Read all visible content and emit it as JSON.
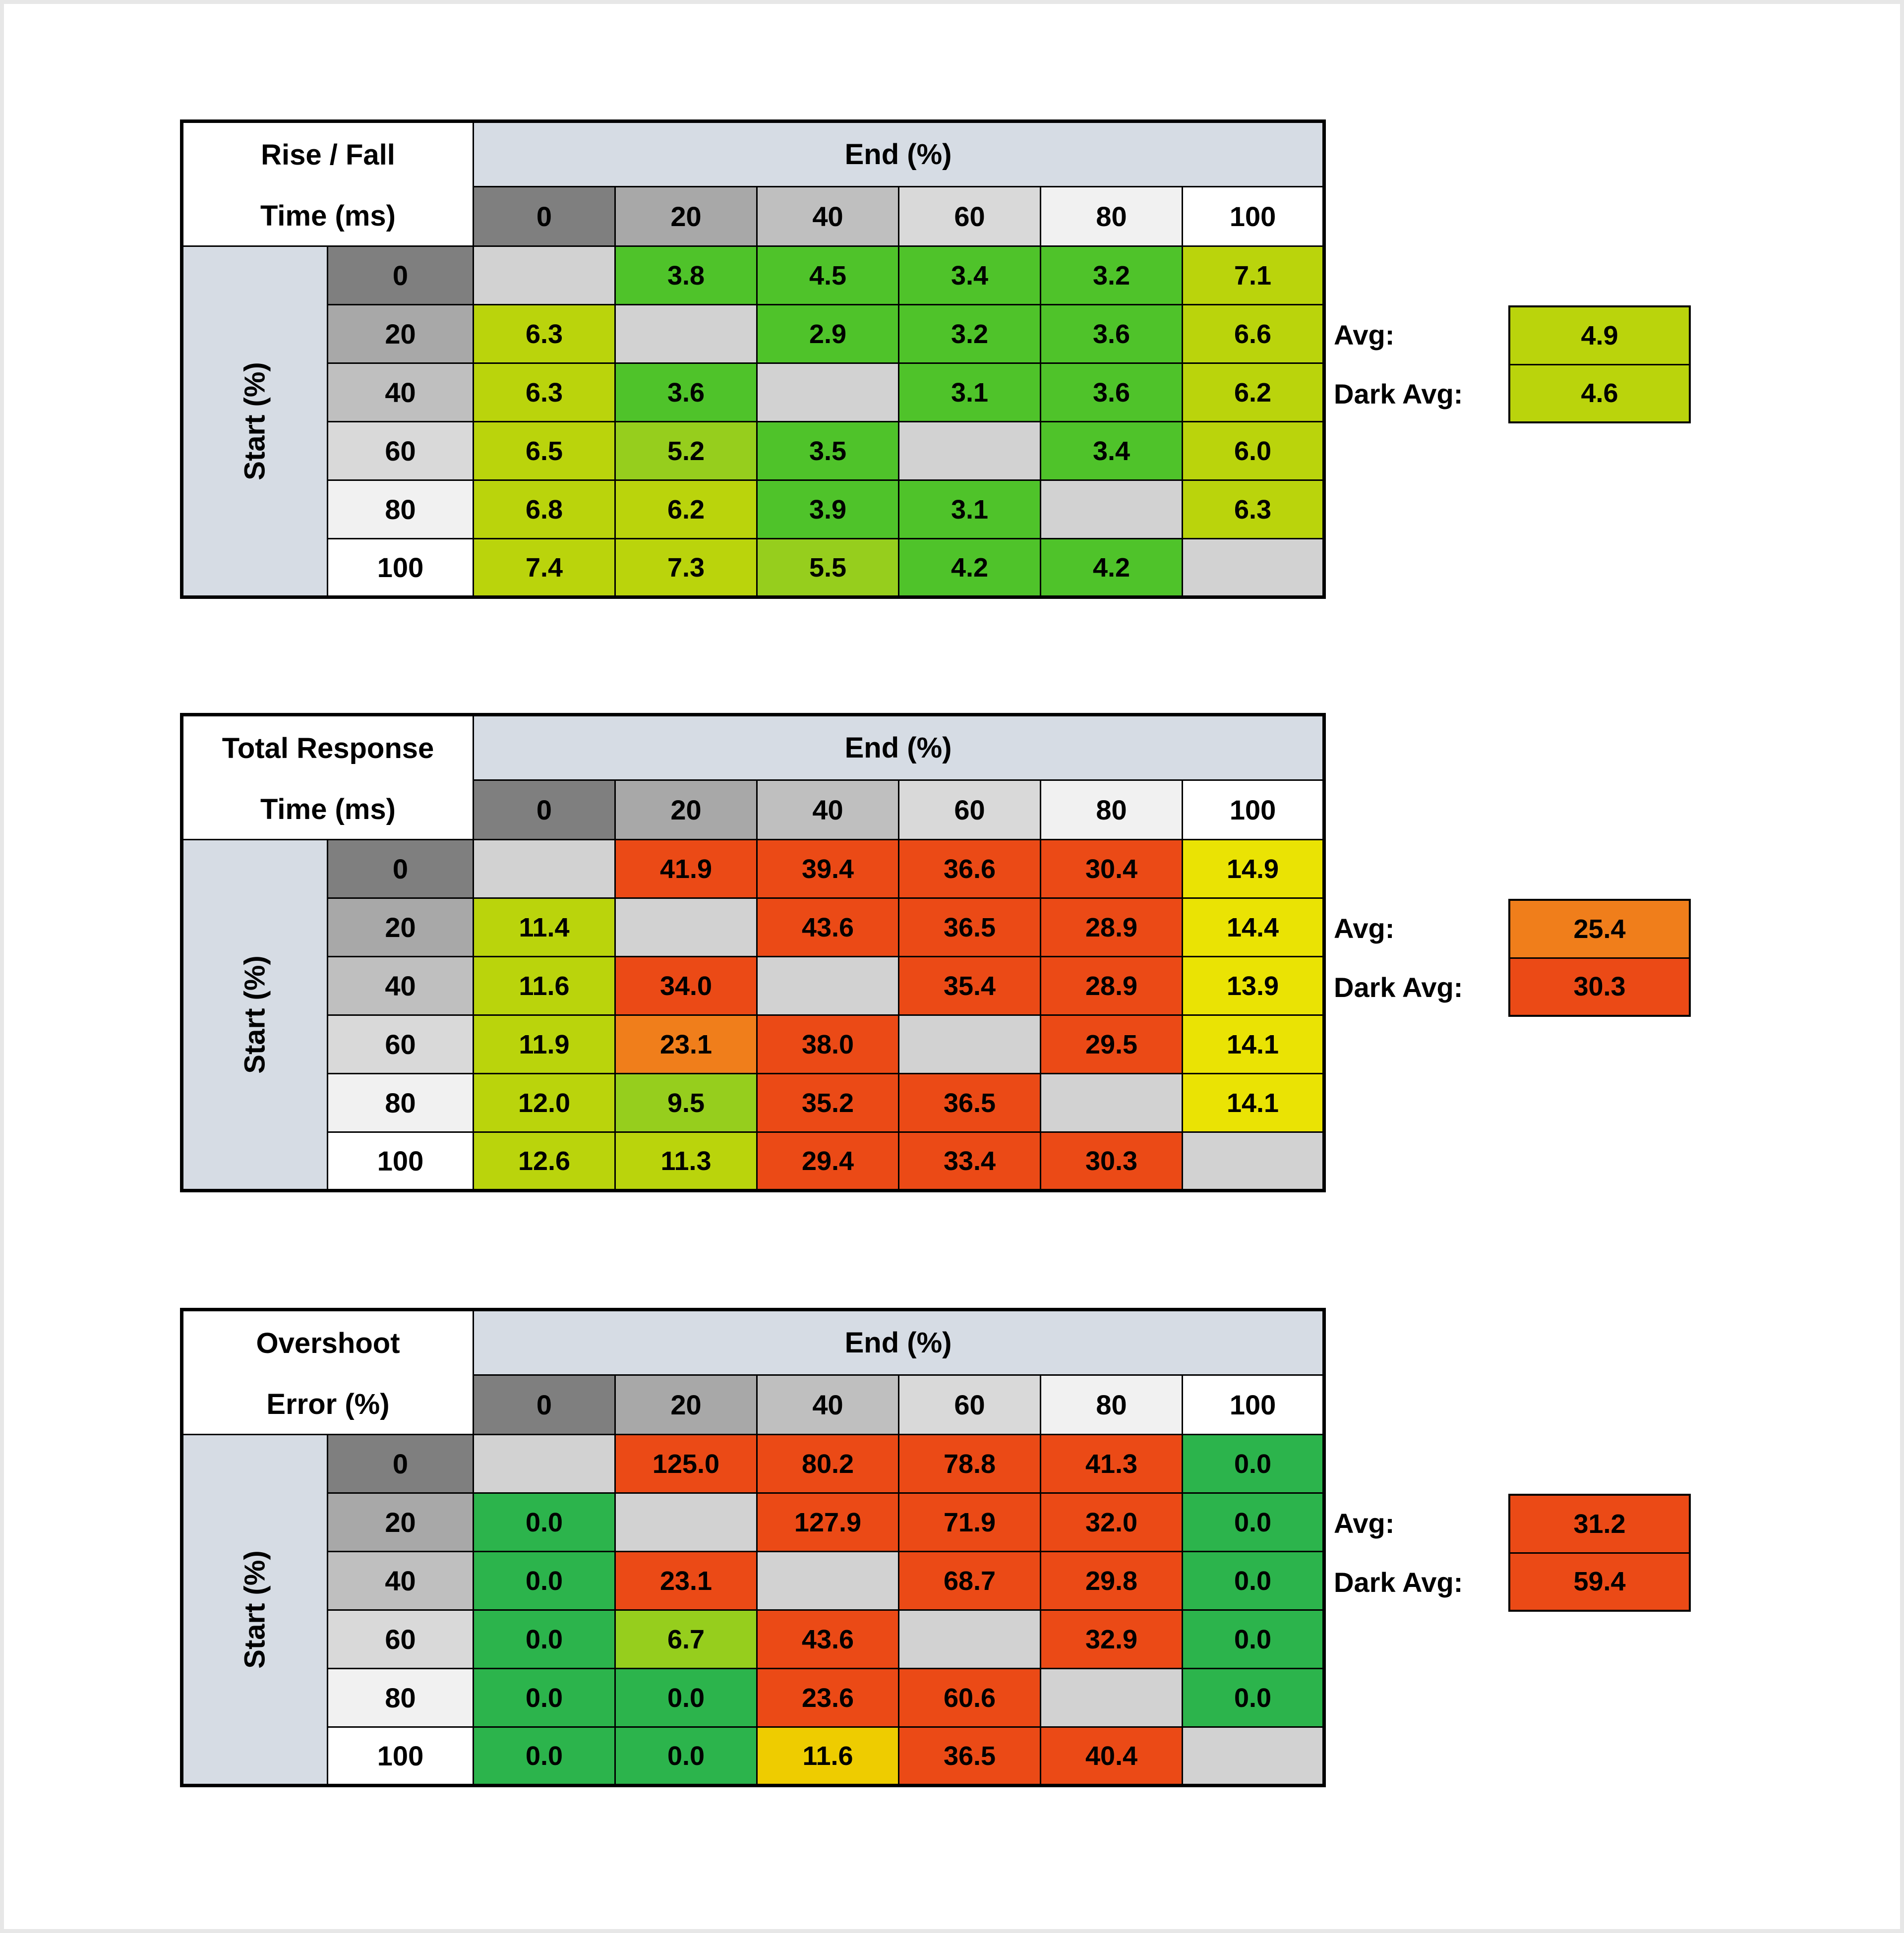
{
  "palette": {
    "header_blue": "#D6DCE4",
    "diag": "#D2D2D2",
    "white": "#FFFFFF",
    "col_grays": [
      "#7F7F7F",
      "#A8A8A8",
      "#BFBFBF",
      "#D9D9D9",
      "#F1F1F1",
      "#FFFFFF"
    ],
    "g": "#2CB44C",
    "g1": "#4FC32A",
    "gy": "#96CE1D",
    "yg": "#BAD40C",
    "y": "#EAE304",
    "gold": "#EECC00",
    "o": "#F07E1B",
    "r": "#EB4A16"
  },
  "chart_data": [
    {
      "type": "heatmap",
      "id": "rise-fall",
      "title": "Rise / Fall Time (ms)",
      "title_lines": [
        "Rise / Fall",
        "Time (ms)"
      ],
      "xlabel": "End (%)",
      "ylabel": "Start (%)",
      "x": [
        0,
        20,
        40,
        60,
        80,
        100
      ],
      "y": [
        0,
        20,
        40,
        60,
        80,
        100
      ],
      "values": [
        [
          null,
          3.8,
          4.5,
          3.4,
          3.2,
          7.1
        ],
        [
          6.3,
          null,
          2.9,
          3.2,
          3.6,
          6.6
        ],
        [
          6.3,
          3.6,
          null,
          3.1,
          3.6,
          6.2
        ],
        [
          6.5,
          5.2,
          3.5,
          null,
          3.4,
          6.0
        ],
        [
          6.8,
          6.2,
          3.9,
          3.1,
          null,
          6.3
        ],
        [
          7.4,
          7.3,
          5.5,
          4.2,
          4.2,
          null
        ]
      ],
      "colors": [
        [
          "diag",
          "g1",
          "g1",
          "g1",
          "g1",
          "yg"
        ],
        [
          "yg",
          "diag",
          "g1",
          "g1",
          "g1",
          "yg"
        ],
        [
          "yg",
          "g1",
          "diag",
          "g1",
          "g1",
          "yg"
        ],
        [
          "yg",
          "gy",
          "g1",
          "diag",
          "g1",
          "yg"
        ],
        [
          "yg",
          "yg",
          "g1",
          "g1",
          "diag",
          "yg"
        ],
        [
          "yg",
          "yg",
          "gy",
          "g1",
          "g1",
          "diag"
        ]
      ],
      "avg": {
        "label": "Avg:",
        "value": 4.9,
        "color": "yg"
      },
      "dark_avg": {
        "label": "Dark Avg:",
        "value": 4.6,
        "color": "yg"
      }
    },
    {
      "type": "heatmap",
      "id": "total-response",
      "title": "Total Response Time (ms)",
      "title_lines": [
        "Total Response",
        "Time (ms)"
      ],
      "xlabel": "End (%)",
      "ylabel": "Start (%)",
      "x": [
        0,
        20,
        40,
        60,
        80,
        100
      ],
      "y": [
        0,
        20,
        40,
        60,
        80,
        100
      ],
      "values": [
        [
          null,
          41.9,
          39.4,
          36.6,
          30.4,
          14.9
        ],
        [
          11.4,
          null,
          43.6,
          36.5,
          28.9,
          14.4
        ],
        [
          11.6,
          34.0,
          null,
          35.4,
          28.9,
          13.9
        ],
        [
          11.9,
          23.1,
          38.0,
          null,
          29.5,
          14.1
        ],
        [
          12.0,
          9.5,
          35.2,
          36.5,
          null,
          14.1
        ],
        [
          12.6,
          11.3,
          29.4,
          33.4,
          30.3,
          null
        ]
      ],
      "colors": [
        [
          "diag",
          "r",
          "r",
          "r",
          "r",
          "y"
        ],
        [
          "yg",
          "diag",
          "r",
          "r",
          "r",
          "y"
        ],
        [
          "yg",
          "r",
          "diag",
          "r",
          "r",
          "y"
        ],
        [
          "yg",
          "o",
          "r",
          "diag",
          "r",
          "y"
        ],
        [
          "yg",
          "gy",
          "r",
          "r",
          "diag",
          "y"
        ],
        [
          "yg",
          "yg",
          "r",
          "r",
          "r",
          "diag"
        ]
      ],
      "avg": {
        "label": "Avg:",
        "value": 25.4,
        "color": "o"
      },
      "dark_avg": {
        "label": "Dark Avg:",
        "value": 30.3,
        "color": "r"
      }
    },
    {
      "type": "heatmap",
      "id": "overshoot",
      "title": "Overshoot Error (%)",
      "title_lines": [
        "Overshoot",
        "Error (%)"
      ],
      "xlabel": "End (%)",
      "ylabel": "Start (%)",
      "x": [
        0,
        20,
        40,
        60,
        80,
        100
      ],
      "y": [
        0,
        20,
        40,
        60,
        80,
        100
      ],
      "values": [
        [
          null,
          125.0,
          80.2,
          78.8,
          41.3,
          0.0
        ],
        [
          0.0,
          null,
          127.9,
          71.9,
          32.0,
          0.0
        ],
        [
          0.0,
          23.1,
          null,
          68.7,
          29.8,
          0.0
        ],
        [
          0.0,
          6.7,
          43.6,
          null,
          32.9,
          0.0
        ],
        [
          0.0,
          0.0,
          23.6,
          60.6,
          null,
          0.0
        ],
        [
          0.0,
          0.0,
          11.6,
          36.5,
          40.4,
          null
        ]
      ],
      "colors": [
        [
          "diag",
          "r",
          "r",
          "r",
          "r",
          "g"
        ],
        [
          "g",
          "diag",
          "r",
          "r",
          "r",
          "g"
        ],
        [
          "g",
          "r",
          "diag",
          "r",
          "r",
          "g"
        ],
        [
          "g",
          "gy",
          "r",
          "diag",
          "r",
          "g"
        ],
        [
          "g",
          "g",
          "r",
          "r",
          "diag",
          "g"
        ],
        [
          "g",
          "g",
          "gold",
          "r",
          "r",
          "diag"
        ]
      ],
      "avg": {
        "label": "Avg:",
        "value": 31.2,
        "color": "r"
      },
      "dark_avg": {
        "label": "Dark Avg:",
        "value": 59.4,
        "color": "r"
      }
    }
  ]
}
